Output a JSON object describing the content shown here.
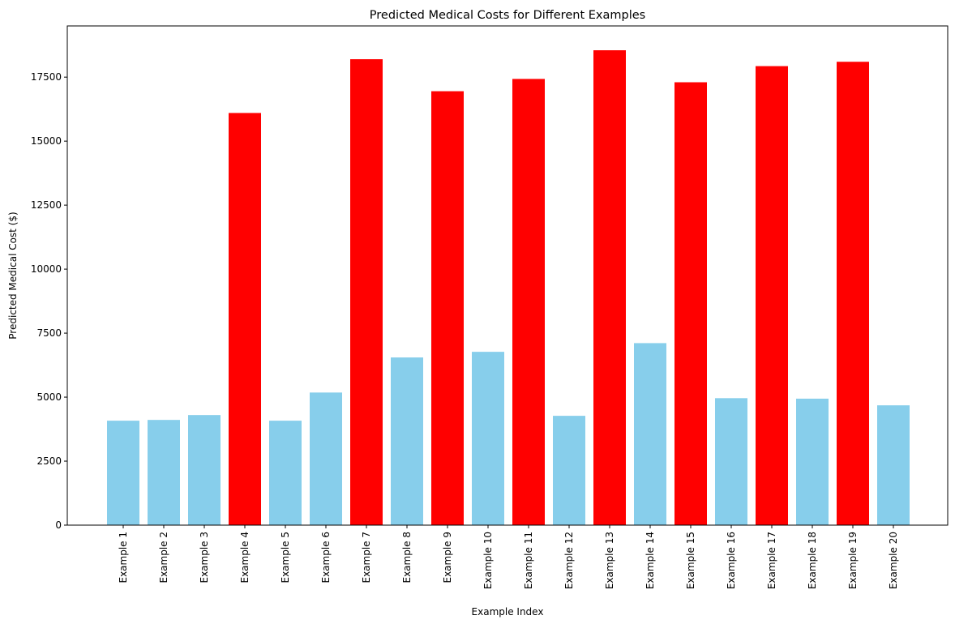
{
  "chart_data": {
    "type": "bar",
    "title": "Predicted Medical Costs for Different Examples",
    "xlabel": "Example Index",
    "ylabel": "Predicted Medical Cost ($)",
    "ylim": [
      0,
      19500
    ],
    "yticks": [
      0,
      2500,
      5000,
      7500,
      10000,
      12500,
      15000,
      17500
    ],
    "grid": false,
    "legend": "none",
    "categories": [
      "Example 1",
      "Example 2",
      "Example 3",
      "Example 4",
      "Example 5",
      "Example 6",
      "Example 7",
      "Example 8",
      "Example 9",
      "Example 10",
      "Example 11",
      "Example 12",
      "Example 13",
      "Example 14",
      "Example 15",
      "Example 16",
      "Example 17",
      "Example 18",
      "Example 19",
      "Example 20"
    ],
    "values": [
      4080,
      4110,
      4300,
      16100,
      4080,
      5180,
      18200,
      6550,
      16950,
      6770,
      17430,
      4270,
      18550,
      7110,
      17300,
      4960,
      17930,
      4940,
      18100,
      4680
    ],
    "colors": [
      "#87ceeb",
      "#87ceeb",
      "#87ceeb",
      "#ff0000",
      "#87ceeb",
      "#87ceeb",
      "#ff0000",
      "#87ceeb",
      "#ff0000",
      "#87ceeb",
      "#ff0000",
      "#87ceeb",
      "#ff0000",
      "#87ceeb",
      "#ff0000",
      "#87ceeb",
      "#ff0000",
      "#87ceeb",
      "#ff0000",
      "#87ceeb"
    ]
  }
}
